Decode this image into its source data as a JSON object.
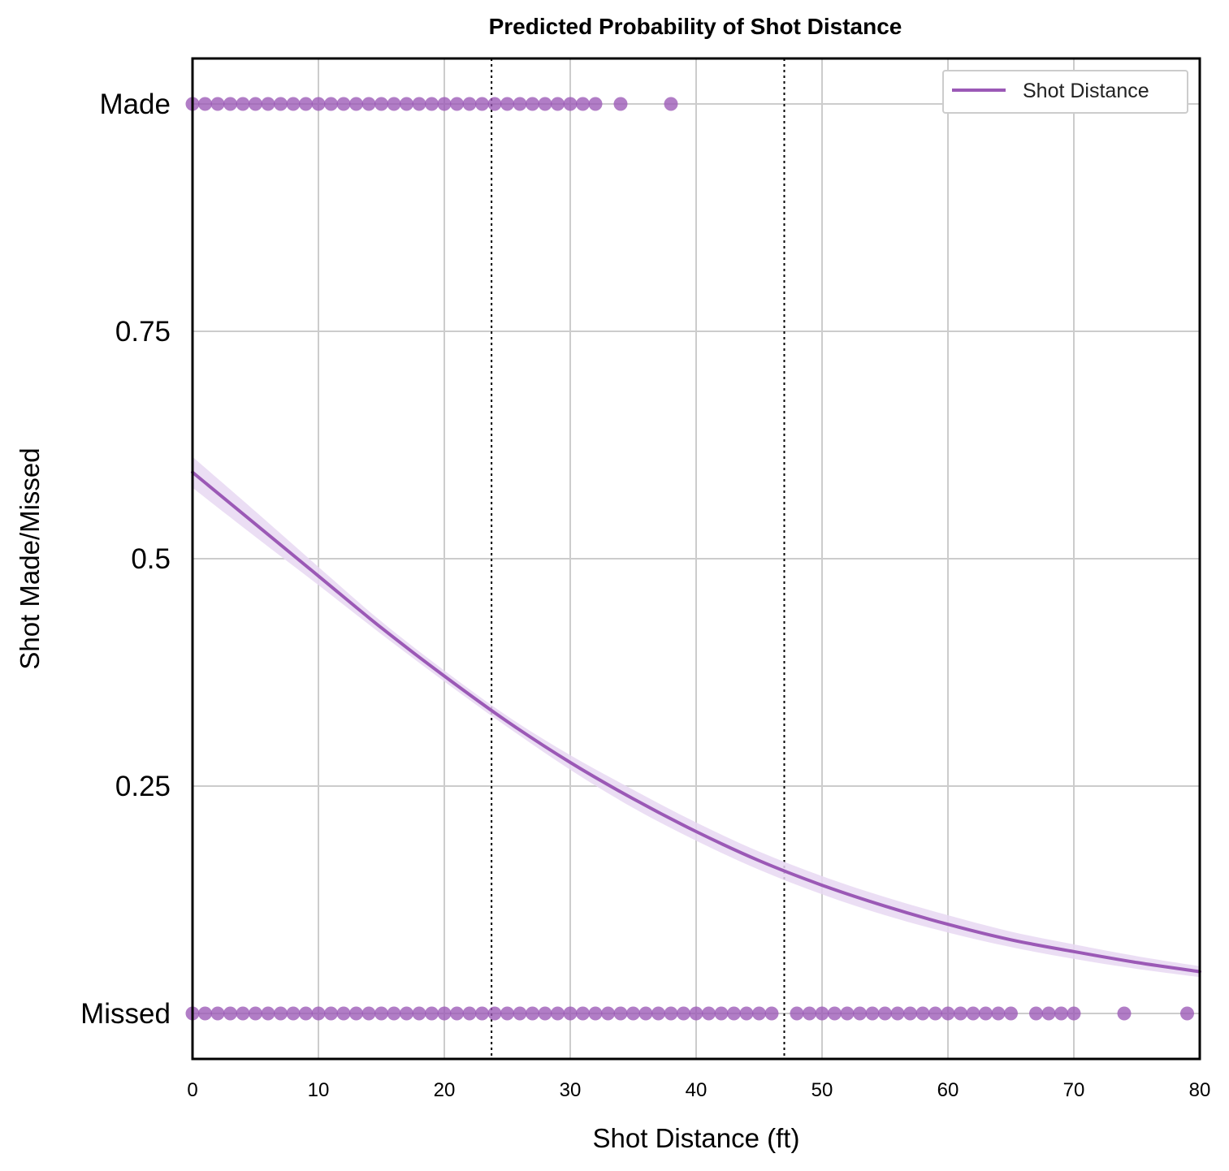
{
  "chart_data": {
    "type": "scatter",
    "title": "Predicted Probability of Shot Distance",
    "xlabel": "Shot Distance (ft)",
    "ylabel": "Shot Made/Missed",
    "xlim": [
      0,
      80
    ],
    "ylim": [
      -0.05,
      1.05
    ],
    "xticks": [
      0,
      10,
      20,
      30,
      40,
      50,
      60,
      70,
      80
    ],
    "xtick_labels": [
      "0",
      "10",
      "20",
      "30",
      "40",
      "50",
      "60",
      "70",
      "80"
    ],
    "yticks": [
      0,
      0.25,
      0.5,
      0.75,
      1
    ],
    "ytick_labels": [
      "Missed",
      "0.25",
      "0.5",
      "0.75",
      "Made"
    ],
    "grid": true,
    "color": "#9b59b6",
    "band_color": "#e8d8f2",
    "legend": {
      "position": "upper-right",
      "entries": [
        "Shot Distance"
      ]
    },
    "vertical_reference_lines": [
      23.75,
      47
    ],
    "series": [
      {
        "name": "Shot Distance",
        "kind": "logistic-fit",
        "x": [
          0,
          5,
          10,
          15,
          20,
          25,
          30,
          35,
          40,
          45,
          50,
          55,
          60,
          65,
          70,
          75,
          80
        ],
        "y": [
          0.595,
          0.538,
          0.481,
          0.424,
          0.371,
          0.321,
          0.276,
          0.236,
          0.2,
          0.168,
          0.141,
          0.118,
          0.098,
          0.081,
          0.068,
          0.056,
          0.046
        ],
        "ci_lower": [
          0.578,
          0.524,
          0.471,
          0.417,
          0.365,
          0.315,
          0.268,
          0.226,
          0.19,
          0.158,
          0.131,
          0.108,
          0.089,
          0.073,
          0.06,
          0.049,
          0.04
        ],
        "ci_upper": [
          0.612,
          0.552,
          0.491,
          0.431,
          0.377,
          0.327,
          0.284,
          0.246,
          0.21,
          0.178,
          0.151,
          0.128,
          0.108,
          0.09,
          0.076,
          0.063,
          0.052
        ]
      },
      {
        "name": "Made",
        "kind": "observations",
        "y_value": 1,
        "x": [
          0,
          1,
          2,
          3,
          4,
          5,
          6,
          7,
          8,
          9,
          10,
          11,
          12,
          13,
          14,
          15,
          16,
          17,
          18,
          19,
          20,
          21,
          22,
          23,
          24,
          25,
          26,
          27,
          28,
          29,
          30,
          31,
          32,
          34,
          38
        ]
      },
      {
        "name": "Missed",
        "kind": "observations",
        "y_value": 0,
        "x": [
          0,
          1,
          2,
          3,
          4,
          5,
          6,
          7,
          8,
          9,
          10,
          11,
          12,
          13,
          14,
          15,
          16,
          17,
          18,
          19,
          20,
          21,
          22,
          23,
          24,
          25,
          26,
          27,
          28,
          29,
          30,
          31,
          32,
          33,
          34,
          35,
          36,
          37,
          38,
          39,
          40,
          41,
          42,
          43,
          44,
          45,
          46,
          48,
          49,
          50,
          51,
          52,
          53,
          54,
          55,
          56,
          57,
          58,
          59,
          60,
          61,
          62,
          63,
          64,
          65,
          67,
          68,
          69,
          70,
          74,
          79
        ]
      }
    ]
  }
}
